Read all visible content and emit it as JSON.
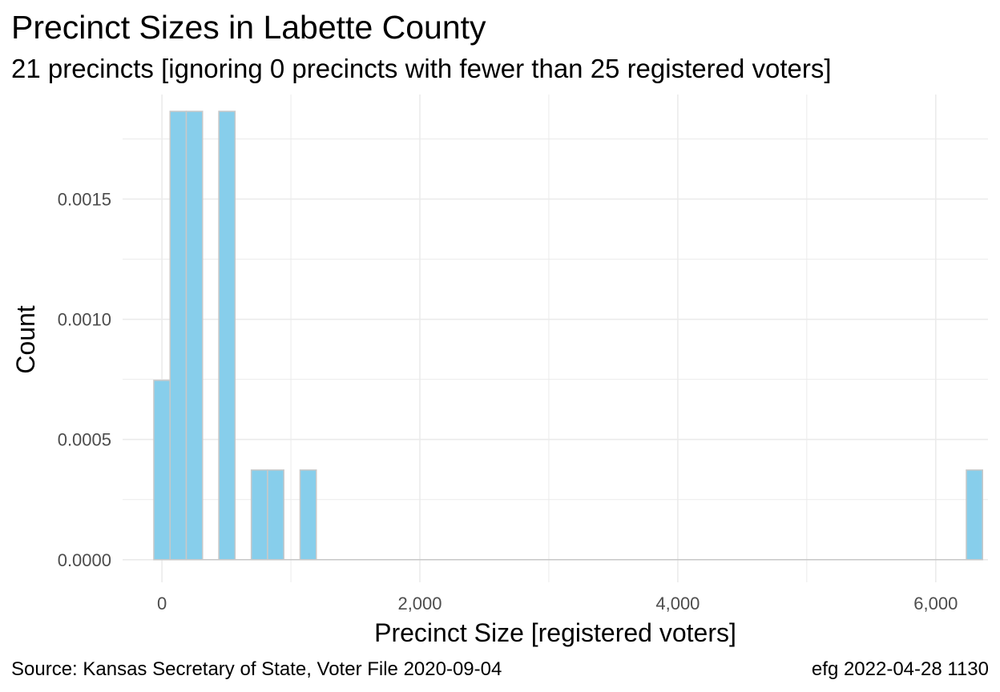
{
  "title": "Precinct Sizes in Labette County",
  "subtitle": "21 precincts [ignoring 0 precincts with fewer than 25 registered voters]",
  "caption_left": "Source:  Kansas Secretary of State, Voter File  2020-09-04",
  "caption_right": "efg 2022-04-28 1130",
  "colors": {
    "bar_fill": "#87CEEB",
    "bar_stroke": "#C8C8C8",
    "grid": "#EBEBEB",
    "baseline": "#C8C8C8"
  },
  "chart_data": {
    "type": "bar",
    "title": "Precinct Sizes in Labette County",
    "subtitle": "21 precincts [ignoring 0 precincts with fewer than 25 registered voters]",
    "xlabel": "Precinct Size [registered voters]",
    "ylabel": "Count",
    "xlim": [
      -305,
      6405
    ],
    "ylim": [
      -9.4e-05,
      0.001935
    ],
    "x_ticks": [
      0,
      2000,
      4000,
      6000
    ],
    "x_tick_labels": [
      "0",
      "2,000",
      "4,000",
      "6,000"
    ],
    "y_ticks": [
      0,
      0.0005,
      0.001,
      0.0015
    ],
    "y_tick_labels": [
      "0.0000",
      "0.0005",
      "0.0010",
      "0.0015"
    ],
    "grid": true,
    "bin_width": 126,
    "bins": [
      {
        "x0": -63,
        "x1": 63,
        "value": 0.000746
      },
      {
        "x0": 63,
        "x1": 189,
        "value": 0.001865
      },
      {
        "x0": 189,
        "x1": 315,
        "value": 0.001865
      },
      {
        "x0": 441,
        "x1": 567,
        "value": 0.001865
      },
      {
        "x0": 693,
        "x1": 819,
        "value": 0.000373
      },
      {
        "x0": 819,
        "x1": 945,
        "value": 0.000373
      },
      {
        "x0": 1071,
        "x1": 1197,
        "value": 0.000373
      },
      {
        "x0": 6237,
        "x1": 6363,
        "value": 0.000373
      }
    ]
  }
}
